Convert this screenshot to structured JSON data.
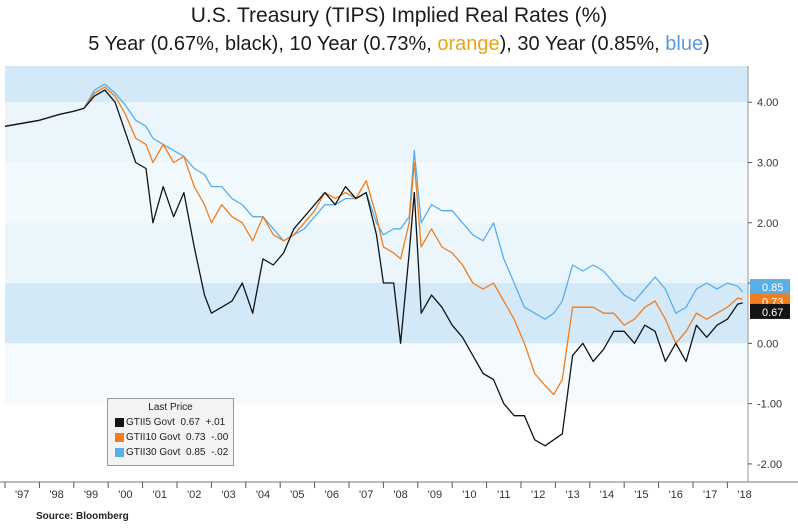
{
  "title": "U.S. Treasury (TIPS) Implied Real Rates (%)",
  "subtitle": {
    "part1": "5 Year (0.67%, black), 10 Year (0.73%, ",
    "orange_word": "orange",
    "part2": "), 30 Year (0.85%, ",
    "blue_word": "blue",
    "part3": ")"
  },
  "colors": {
    "black_series": "#141414",
    "orange_series": "#f07d1e",
    "blue_series": "#5aaee6",
    "orange_word": "#e8a416",
    "blue_word": "#5d9bd5",
    "band_dark": "#d3e9f7",
    "band_light": "#ebf6fc"
  },
  "legend": {
    "title": "Last Price",
    "rows": [
      {
        "ticker": "GTII5 Govt",
        "price": "0.67",
        "change": "+.01",
        "color": "#141414"
      },
      {
        "ticker": "GTII10 Govt",
        "price": "0.73",
        "change": "-.00",
        "color": "#f07d1e"
      },
      {
        "ticker": "GTII30 Govt",
        "price": "0.85",
        "change": "-.02",
        "color": "#5aaee6"
      }
    ]
  },
  "source": "Source: Bloomberg",
  "chart_data": {
    "type": "line",
    "title": "U.S. Treasury (TIPS) Implied Real Rates (%)",
    "xlabel": "",
    "ylabel": "",
    "xlim": [
      1997.0,
      2018.6
    ],
    "ylim": [
      -2.3,
      4.6
    ],
    "x_ticks": [
      "'97",
      "'98",
      "'99",
      "'00",
      "'01",
      "'02",
      "'03",
      "'04",
      "'05",
      "'06",
      "'07",
      "'08",
      "'09",
      "'10",
      "'11",
      "'12",
      "'13",
      "'14",
      "'15",
      "'16",
      "'17",
      "'18"
    ],
    "y_ticks": [
      "4.00",
      "3.00",
      "2.00",
      "1.00",
      "0.00",
      "-1.00",
      "-2.00"
    ],
    "y_tick_values": [
      4,
      3,
      2,
      1,
      0,
      -1,
      -2
    ],
    "last_value_labels": [
      {
        "text": "0.67",
        "value": 0.67,
        "color": "#141414"
      },
      {
        "text": "0.73",
        "value": 0.73,
        "color": "#f07d1e"
      },
      {
        "text": "0.85",
        "value": 0.85,
        "color": "#5aaee6"
      }
    ],
    "legend_position": "bottom-left",
    "grid": false,
    "series": [
      {
        "name": "GTII5 Govt",
        "color": "#141414",
        "x": [
          1997.0,
          1997.5,
          1998.0,
          1998.6,
          1999.0,
          1999.3,
          1999.6,
          1999.9,
          2000.2,
          2000.5,
          2000.8,
          2001.1,
          2001.3,
          2001.6,
          2001.9,
          2002.2,
          2002.5,
          2002.8,
          2003.0,
          2003.3,
          2003.6,
          2003.9,
          2004.2,
          2004.5,
          2004.8,
          2005.1,
          2005.4,
          2005.7,
          2006.0,
          2006.3,
          2006.6,
          2006.9,
          2007.2,
          2007.5,
          2007.8,
          2008.0,
          2008.3,
          2008.5,
          2008.75,
          2008.9,
          2009.1,
          2009.4,
          2009.7,
          2010.0,
          2010.3,
          2010.6,
          2010.9,
          2011.2,
          2011.5,
          2011.8,
          2012.1,
          2012.4,
          2012.7,
          2012.95,
          2013.2,
          2013.5,
          2013.8,
          2014.1,
          2014.4,
          2014.7,
          2015.0,
          2015.3,
          2015.6,
          2015.9,
          2016.2,
          2016.5,
          2016.8,
          2017.1,
          2017.4,
          2017.7,
          2018.0,
          2018.3,
          2018.45
        ],
        "values": [
          3.6,
          3.65,
          3.7,
          3.8,
          3.85,
          3.9,
          4.1,
          4.2,
          4.0,
          3.5,
          3.0,
          2.9,
          2.0,
          2.6,
          2.1,
          2.5,
          1.6,
          0.8,
          0.5,
          0.6,
          0.7,
          1.0,
          0.5,
          1.4,
          1.3,
          1.5,
          1.9,
          2.1,
          2.3,
          2.5,
          2.3,
          2.6,
          2.4,
          2.5,
          1.8,
          1.0,
          1.0,
          0.0,
          1.5,
          2.5,
          0.5,
          0.8,
          0.6,
          0.3,
          0.1,
          -0.2,
          -0.5,
          -0.6,
          -1.0,
          -1.2,
          -1.2,
          -1.6,
          -1.7,
          -1.6,
          -1.5,
          -0.2,
          0.0,
          -0.3,
          -0.1,
          0.2,
          0.2,
          0.0,
          0.3,
          0.2,
          -0.3,
          0.0,
          -0.3,
          0.3,
          0.1,
          0.3,
          0.4,
          0.65,
          0.67
        ]
      },
      {
        "name": "GTII10 Govt",
        "color": "#f07d1e",
        "x": [
          1997.0,
          1997.5,
          1998.0,
          1998.6,
          1999.0,
          1999.3,
          1999.6,
          1999.9,
          2000.2,
          2000.5,
          2000.8,
          2001.1,
          2001.3,
          2001.6,
          2001.9,
          2002.2,
          2002.5,
          2002.8,
          2003.0,
          2003.3,
          2003.6,
          2003.9,
          2004.2,
          2004.5,
          2004.8,
          2005.1,
          2005.4,
          2005.7,
          2006.0,
          2006.3,
          2006.6,
          2006.9,
          2007.2,
          2007.5,
          2007.8,
          2008.0,
          2008.3,
          2008.5,
          2008.75,
          2008.9,
          2009.1,
          2009.4,
          2009.7,
          2010.0,
          2010.3,
          2010.6,
          2010.9,
          2011.2,
          2011.5,
          2011.8,
          2012.1,
          2012.4,
          2012.7,
          2012.95,
          2013.2,
          2013.5,
          2013.8,
          2014.1,
          2014.4,
          2014.7,
          2015.0,
          2015.3,
          2015.6,
          2015.9,
          2016.2,
          2016.5,
          2016.8,
          2017.1,
          2017.4,
          2017.7,
          2018.0,
          2018.3,
          2018.45
        ],
        "values": [
          3.6,
          3.65,
          3.7,
          3.8,
          3.85,
          3.9,
          4.15,
          4.25,
          4.1,
          3.8,
          3.4,
          3.3,
          3.0,
          3.3,
          3.0,
          3.1,
          2.6,
          2.3,
          2.0,
          2.3,
          2.1,
          2.0,
          1.7,
          2.1,
          1.8,
          1.7,
          1.8,
          2.0,
          2.2,
          2.5,
          2.4,
          2.5,
          2.4,
          2.7,
          2.1,
          1.6,
          1.5,
          1.4,
          2.0,
          3.0,
          1.6,
          1.9,
          1.6,
          1.5,
          1.3,
          1.0,
          0.9,
          1.0,
          0.7,
          0.4,
          0.0,
          -0.5,
          -0.7,
          -0.85,
          -0.6,
          0.6,
          0.6,
          0.6,
          0.5,
          0.5,
          0.3,
          0.4,
          0.6,
          0.7,
          0.4,
          0.0,
          0.2,
          0.5,
          0.4,
          0.5,
          0.6,
          0.75,
          0.73
        ]
      },
      {
        "name": "GTII30 Govt",
        "color": "#5aaee6",
        "x": [
          1997.0,
          1997.5,
          1998.0,
          1998.6,
          1999.0,
          1999.3,
          1999.6,
          1999.9,
          2000.2,
          2000.5,
          2000.8,
          2001.1,
          2001.3,
          2001.6,
          2001.9,
          2002.2,
          2002.5,
          2002.8,
          2003.0,
          2003.3,
          2003.6,
          2003.9,
          2004.2,
          2004.5,
          2004.8,
          2005.1,
          2005.4,
          2005.7,
          2006.0,
          2006.3,
          2006.6,
          2006.9,
          2007.2,
          2007.5,
          2007.8,
          2008.0,
          2008.3,
          2008.5,
          2008.75,
          2008.9,
          2009.1,
          2009.4,
          2009.7,
          2010.0,
          2010.3,
          2010.6,
          2010.9,
          2011.2,
          2011.5,
          2011.8,
          2012.1,
          2012.4,
          2012.7,
          2012.95,
          2013.2,
          2013.5,
          2013.8,
          2014.1,
          2014.4,
          2014.7,
          2015.0,
          2015.3,
          2015.6,
          2015.9,
          2016.2,
          2016.5,
          2016.8,
          2017.1,
          2017.4,
          2017.7,
          2018.0,
          2018.3,
          2018.45
        ],
        "values": [
          3.6,
          3.65,
          3.7,
          3.8,
          3.85,
          3.9,
          4.2,
          4.3,
          4.15,
          3.95,
          3.7,
          3.6,
          3.4,
          3.3,
          3.2,
          3.1,
          2.9,
          2.8,
          2.6,
          2.6,
          2.4,
          2.3,
          2.1,
          2.1,
          1.9,
          1.7,
          1.8,
          1.9,
          2.1,
          2.3,
          2.3,
          2.4,
          2.4,
          2.5,
          2.0,
          1.8,
          1.9,
          1.9,
          2.1,
          3.2,
          2.0,
          2.3,
          2.2,
          2.2,
          2.0,
          1.8,
          1.7,
          2.0,
          1.4,
          1.0,
          0.6,
          0.5,
          0.4,
          0.5,
          0.7,
          1.3,
          1.2,
          1.3,
          1.2,
          1.0,
          0.8,
          0.7,
          0.9,
          1.1,
          0.9,
          0.5,
          0.6,
          0.9,
          1.0,
          0.9,
          1.0,
          0.95,
          0.85
        ]
      }
    ]
  }
}
